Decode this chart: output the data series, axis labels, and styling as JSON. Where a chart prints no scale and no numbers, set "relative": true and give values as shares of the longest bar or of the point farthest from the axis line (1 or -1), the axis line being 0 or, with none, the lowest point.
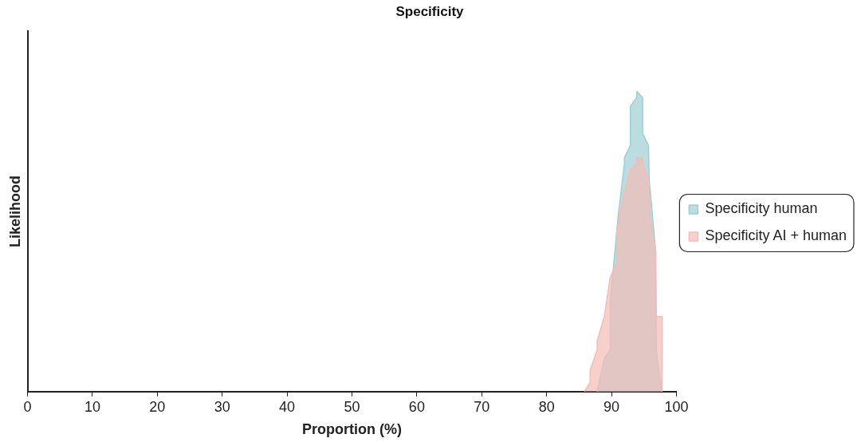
{
  "chart_data": {
    "type": "area",
    "title": "Specificity",
    "xlabel": "Proportion (%)",
    "ylabel": "Likelihood",
    "relative": true,
    "xlim": [
      0,
      100
    ],
    "xticks": [
      0,
      10,
      20,
      30,
      40,
      50,
      60,
      70,
      80,
      90,
      100
    ],
    "legend": "right",
    "grid": false,
    "marker": "none",
    "series": [
      {
        "name": "Specificity human",
        "color": "#9ccfd3",
        "x": [
          87.8,
          88.9,
          89.8,
          89.8,
          90.8,
          91.0,
          92.0,
          92.0,
          92.9,
          92.9,
          93.9,
          93.9,
          94.8,
          94.8,
          94.8,
          95.7,
          95.8,
          96.8,
          96.9,
          97.8
        ],
        "values": [
          0,
          0.11,
          0.14,
          0.3,
          0.53,
          0.58,
          0.76,
          0.78,
          0.82,
          0.95,
          0.98,
          1.0,
          0.98,
          0.98,
          0.86,
          0.82,
          0.71,
          0.47,
          0.13,
          0
        ]
      },
      {
        "name": "Specificity AI + human",
        "color": "#f4bcb6",
        "x": [
          85.8,
          86.7,
          86.7,
          87.8,
          87.8,
          88.9,
          89.8,
          90.8,
          90.8,
          91.7,
          92.9,
          93.9,
          93.9,
          94.8,
          94.8,
          95.7,
          95.9,
          96.8,
          96.9,
          97.8,
          97.8
        ],
        "values": [
          0,
          0.03,
          0.07,
          0.14,
          0.17,
          0.25,
          0.38,
          0.43,
          0.53,
          0.64,
          0.74,
          0.76,
          0.78,
          0.78,
          0.76,
          0.71,
          0.59,
          0.47,
          0.25,
          0.25,
          0
        ]
      }
    ]
  }
}
